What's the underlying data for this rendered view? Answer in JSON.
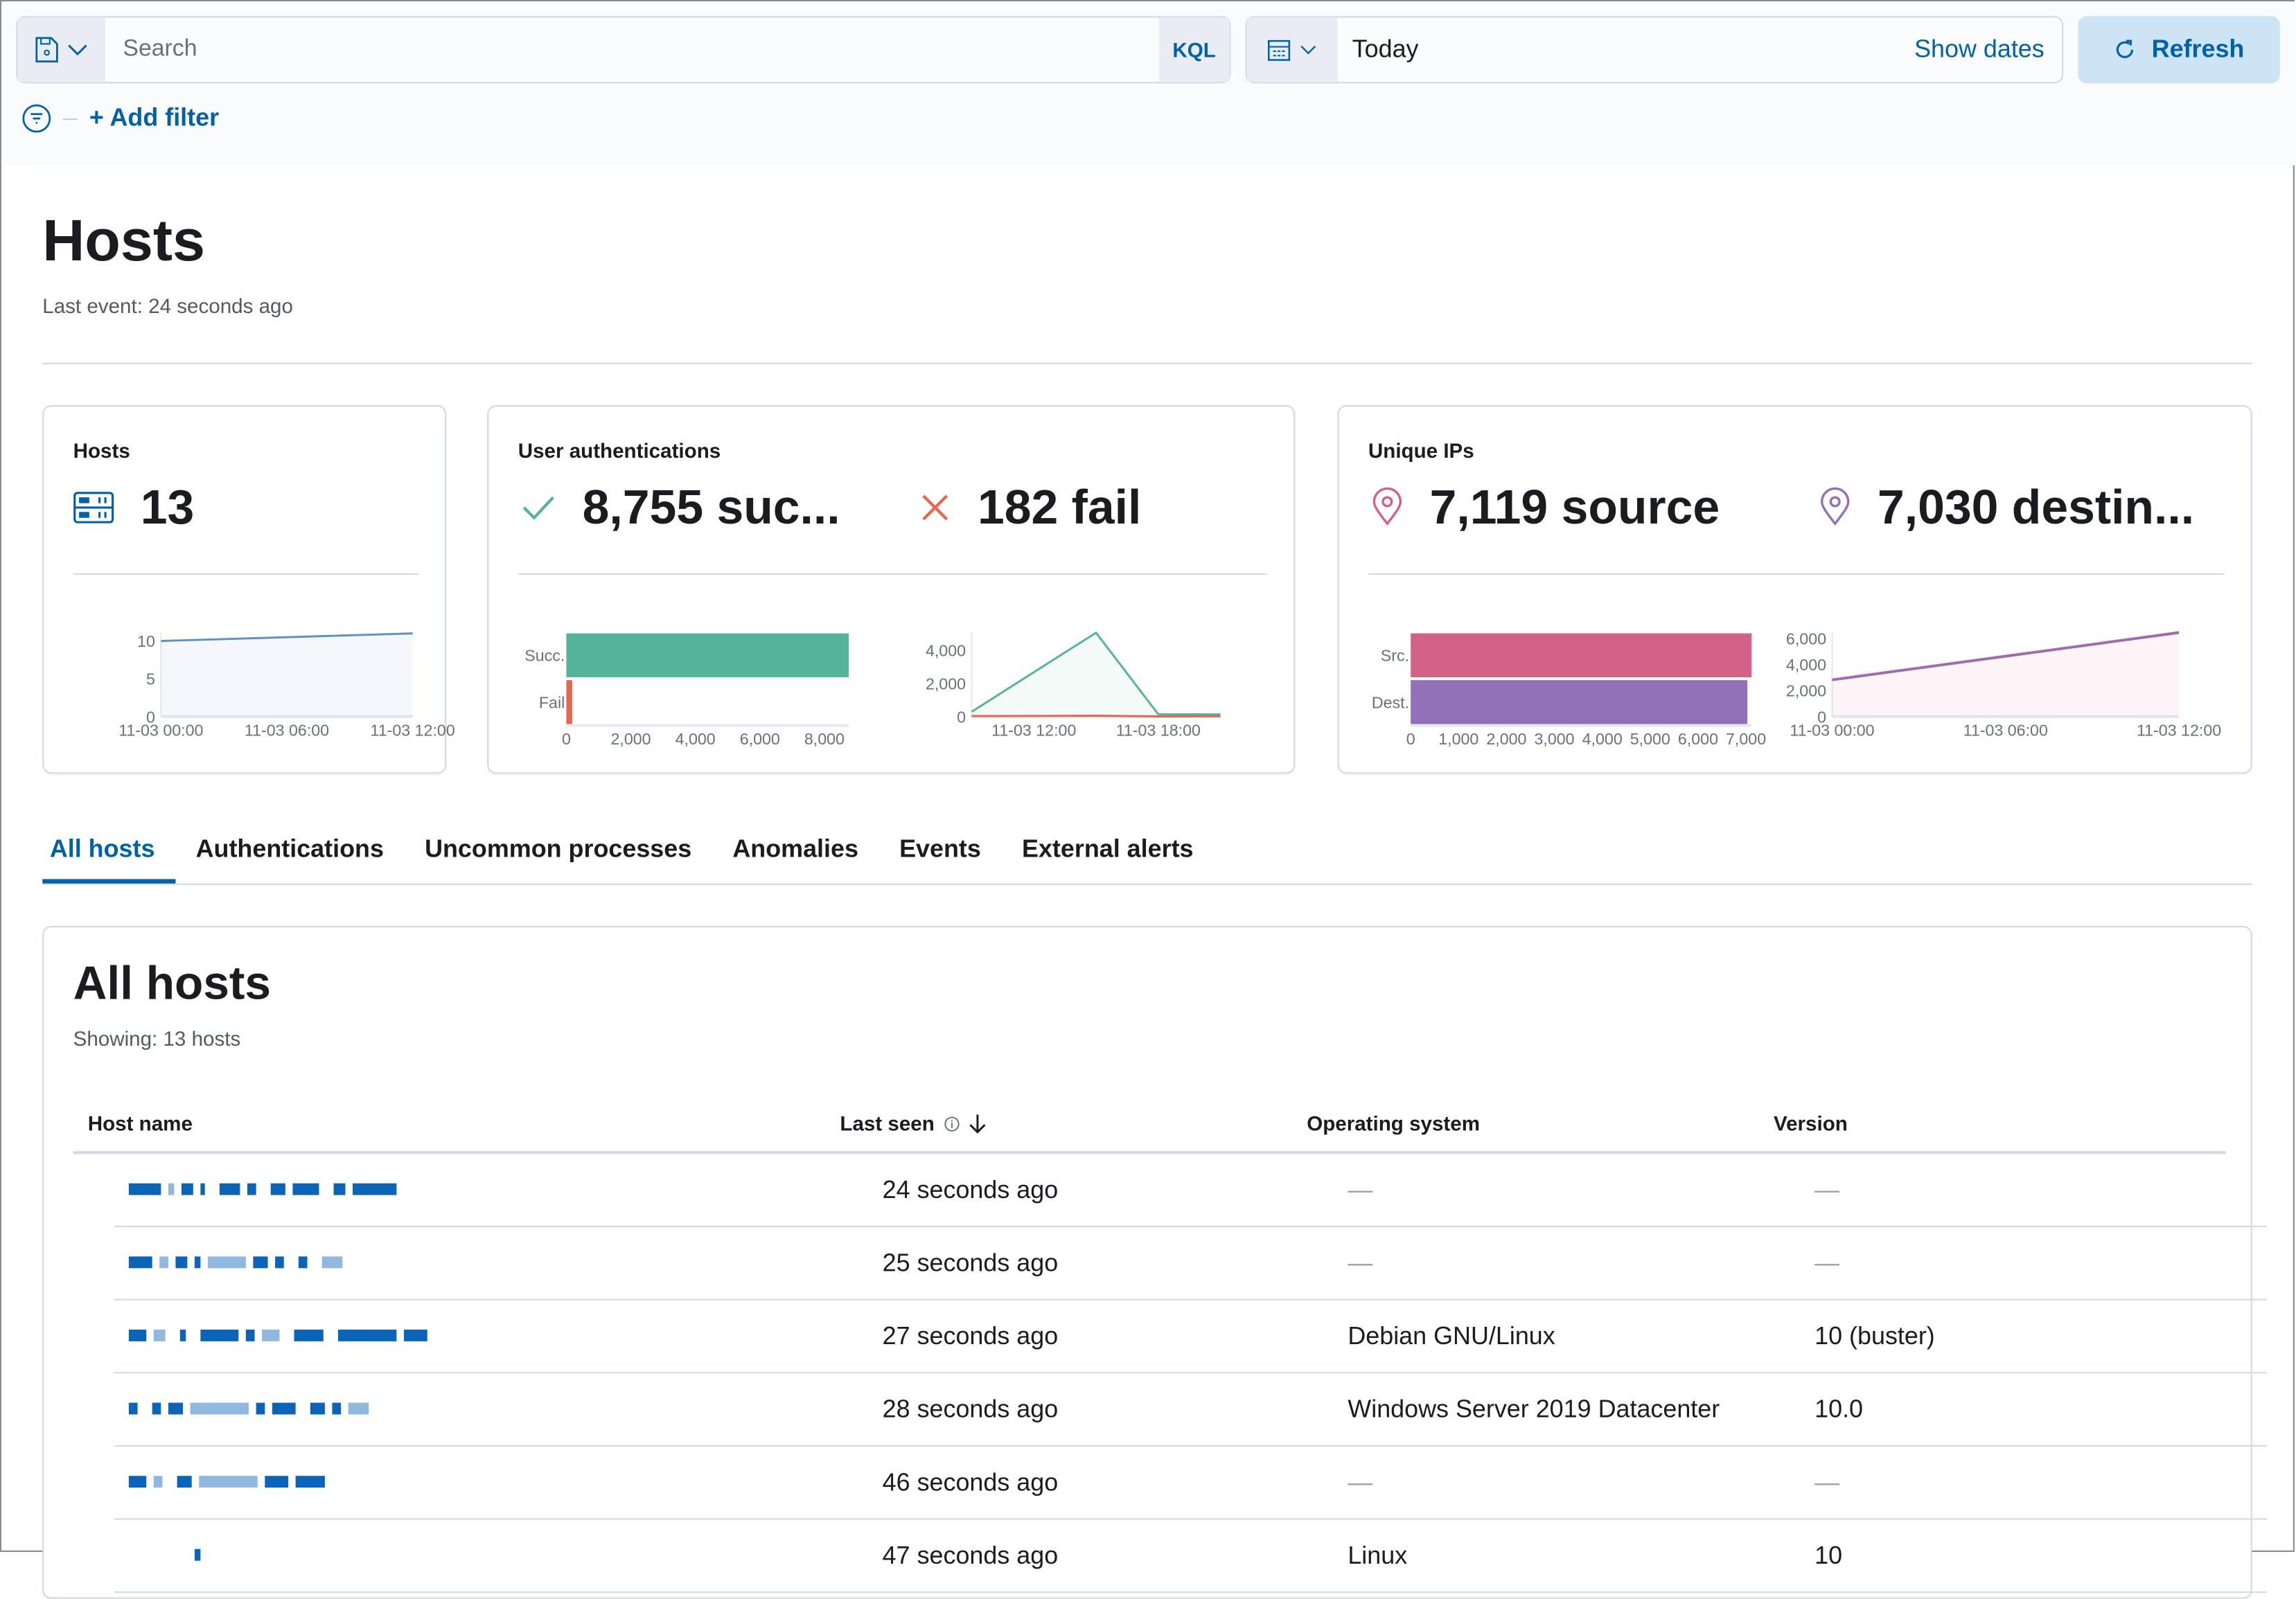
{
  "query_bar": {
    "search_placeholder": "Search",
    "language": "KQL",
    "date": "Today",
    "show_dates": "Show dates",
    "refresh": "Refresh",
    "add_filter": "+ Add filter"
  },
  "page": {
    "title": "Hosts",
    "last_event": "Last event: 24 seconds ago"
  },
  "kpis": {
    "hosts": {
      "title": "Hosts",
      "value": "13"
    },
    "auth": {
      "title": "User authentications",
      "success": "8,755 suc...",
      "fail": "182 fail"
    },
    "ips": {
      "title": "Unique IPs",
      "source": "7,119 source",
      "destination": "7,030 destin..."
    }
  },
  "colors": {
    "accent": "#0061a6",
    "success": "#54b399",
    "fail": "#e7664c",
    "source": "#d36086",
    "destination": "#9170b8",
    "hosts_line": "#6092c0"
  },
  "chart_data": [
    {
      "type": "area",
      "id": "hosts",
      "x": [
        "11-03 00:00",
        "11-03 12:00"
      ],
      "series": [
        {
          "values": [
            10,
            11
          ],
          "color": "#6092c0"
        }
      ],
      "xticks": [
        "11-03 00:00",
        "11-03 06:00",
        "11-03 12:00"
      ],
      "yticks": [
        "0",
        "5",
        "10"
      ],
      "ylim": [
        0,
        11.2
      ]
    },
    {
      "type": "bar",
      "id": "auth-bar",
      "orientation": "horizontal",
      "categories": [
        "Succ.",
        "Fail"
      ],
      "values": [
        8755,
        182
      ],
      "colors": [
        "#54b399",
        "#e7664c"
      ],
      "xticks": [
        "0",
        "2,000",
        "4,000",
        "6,000",
        "8,000"
      ],
      "xlim": [
        0,
        8755
      ]
    },
    {
      "type": "area",
      "id": "auth-area",
      "x": [
        "11-03 09:00",
        "11-03 15:00",
        "11-03 18:00",
        "11-03 21:00"
      ],
      "series": [
        {
          "name": "Succ.",
          "values": [
            300,
            5050,
            150,
            140
          ],
          "color": "#54b399"
        },
        {
          "name": "Fail",
          "values": [
            40,
            60,
            20,
            30
          ],
          "color": "#e7664c"
        }
      ],
      "xticks": [
        "11-03 12:00",
        "11-03 18:00"
      ],
      "yticks": [
        "0",
        "2,000",
        "4,000"
      ],
      "ylim": [
        0,
        5100
      ]
    },
    {
      "type": "bar",
      "id": "ips-bar",
      "orientation": "horizontal",
      "categories": [
        "Src.",
        "Dest."
      ],
      "values": [
        7119,
        7030
      ],
      "colors": [
        "#d36086",
        "#9170b8"
      ],
      "xticks": [
        "0",
        "1,000",
        "2,000",
        "3,000",
        "4,000",
        "5,000",
        "6,000",
        "7,000"
      ],
      "xlim": [
        0,
        7119
      ]
    },
    {
      "type": "area",
      "id": "ips-area",
      "x": [
        "11-03 00:00",
        "11-03 12:00"
      ],
      "series": [
        {
          "name": "Src.",
          "values": [
            2850,
            6480
          ],
          "color": "#d36086"
        },
        {
          "name": "Dest.",
          "values": [
            2800,
            6420
          ],
          "color": "#9170b8"
        }
      ],
      "xticks": [
        "11-03 00:00",
        "11-03 06:00",
        "11-03 12:00"
      ],
      "yticks": [
        "0",
        "2,000",
        "4,000",
        "6,000"
      ],
      "ylim": [
        0,
        6500
      ]
    }
  ],
  "tabs": [
    "All hosts",
    "Authentications",
    "Uncommon processes",
    "Anomalies",
    "Events",
    "External alerts"
  ],
  "table": {
    "title": "All hosts",
    "showing": "Showing: 13 hosts",
    "columns": [
      "Host name",
      "Last seen",
      "Operating system",
      "Version"
    ],
    "rows": [
      {
        "last_seen": "24 seconds ago",
        "os": "—",
        "version": "—"
      },
      {
        "last_seen": "25 seconds ago",
        "os": "—",
        "version": "—"
      },
      {
        "last_seen": "27 seconds ago",
        "os": "Debian GNU/Linux",
        "version": "10 (buster)"
      },
      {
        "last_seen": "28 seconds ago",
        "os": "Windows Server 2019 Datacenter",
        "version": "10.0"
      },
      {
        "last_seen": "46 seconds ago",
        "os": "—",
        "version": "—"
      },
      {
        "last_seen": "47 seconds ago",
        "os": "Linux",
        "version": "10"
      }
    ]
  }
}
